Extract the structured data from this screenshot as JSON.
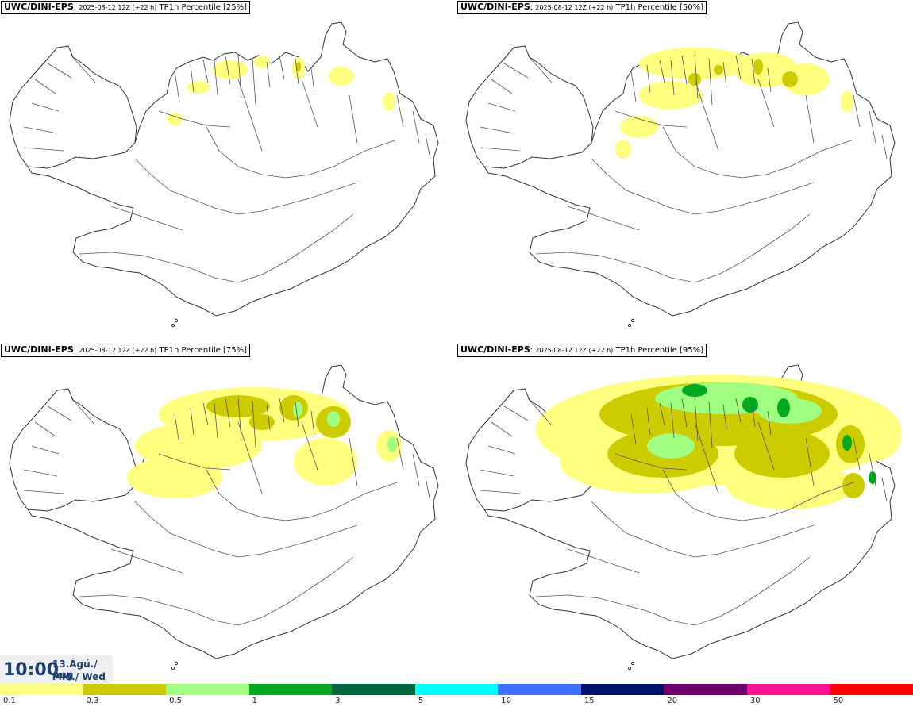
{
  "panels": [
    {
      "model": "UWC/DINI-EPS",
      "run": "2025-08-12 12Z (+22 h)",
      "field": "TP1h Percentile [25%]",
      "level": 0
    },
    {
      "model": "UWC/DINI-EPS",
      "run": "2025-08-12 12Z (+22 h)",
      "field": "TP1h Percentile [50%]",
      "level": 1
    },
    {
      "model": "UWC/DINI-EPS",
      "run": "2025-08-12 12Z (+22 h)",
      "field": "TP1h Percentile [75%]",
      "level": 2
    },
    {
      "model": "UWC/DINI-EPS",
      "run": "2025-08-12 12Z (+22 h)",
      "field": "TP1h Percentile [95%]",
      "level": 3
    }
  ],
  "time": {
    "hour": "10:00",
    "date": "13.Ágú./ Aug",
    "weekday": "Mið./ Wed"
  },
  "legend": {
    "colors": [
      "#ffff80",
      "#cccc00",
      "#a0ff80",
      "#00aa20",
      "#006640",
      "#00ffff",
      "#4070ff",
      "#001070",
      "#700070",
      "#ff1090",
      "#ff0000"
    ],
    "ticks": [
      "0.1",
      "0.3",
      "0.5",
      "1",
      "3",
      "5",
      "10",
      "15",
      "20",
      "30",
      "50"
    ]
  }
}
